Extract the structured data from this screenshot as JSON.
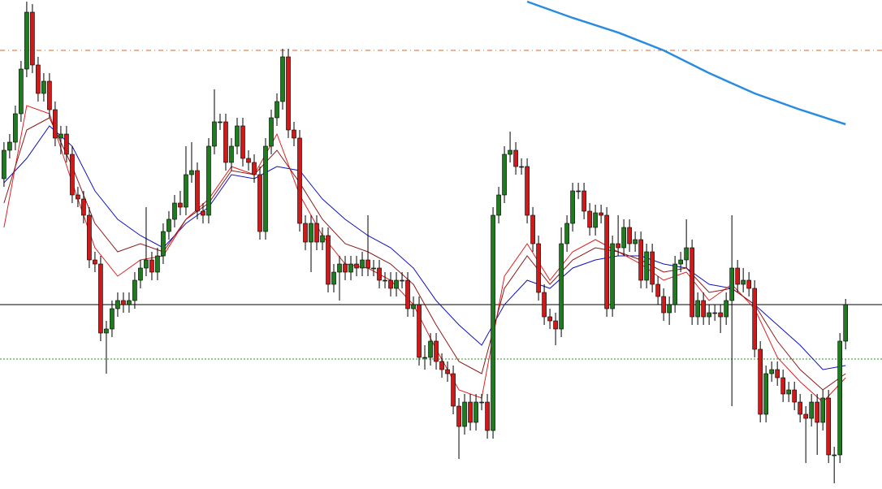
{
  "chart_data": {
    "type": "candlestick",
    "xlim": [
      -0.7,
      154.4
    ],
    "ylim": [
      0,
      600
    ],
    "up_color": "#1e7b1e",
    "down_color": "#d01a1a",
    "wick_color": "#000000",
    "open": [
      380,
      415,
      425,
      460,
      515,
      585,
      520,
      485,
      500,
      465,
      430,
      435,
      410,
      360,
      355,
      335,
      280,
      275,
      190,
      195,
      220,
      230,
      225,
      230,
      255,
      270,
      280,
      265,
      285,
      315,
      330,
      350,
      345,
      385,
      390,
      340,
      335,
      420,
      450,
      450,
      400,
      420,
      445,
      405,
      400,
      385,
      315,
      420,
      455,
      475,
      530,
      440,
      430,
      325,
      302,
      325,
      302,
      310,
      250,
      265,
      275,
      265,
      275,
      270,
      280,
      270,
      270,
      255,
      255,
      245,
      255,
      255,
      220,
      225,
      160,
      160,
      180,
      155,
      145,
      140,
      100,
      75,
      105,
      80,
      105,
      105,
      70,
      335,
      360,
      410,
      415,
      395,
      395,
      335,
      300,
      240,
      210,
      205,
      195,
      300,
      325,
      365,
      365,
      340,
      320,
      338,
      335,
      220,
      300,
      295,
      320,
      300,
      305,
      255,
      290,
      250,
      235,
      215,
      225,
      275,
      280,
      295,
      210,
      230,
      210,
      215,
      215,
      210,
      230,
      270,
      250,
      255,
      245,
      170,
      90,
      140,
      145,
      135,
      115,
      120,
      105,
      90,
      85,
      105,
      80,
      110,
      40,
      40,
      180
    ],
    "high": [
      425,
      435,
      470,
      525,
      598,
      595,
      530,
      510,
      510,
      475,
      445,
      445,
      420,
      370,
      365,
      345,
      290,
      285,
      205,
      230,
      240,
      240,
      240,
      265,
      280,
      345,
      290,
      295,
      325,
      340,
      360,
      365,
      420,
      425,
      400,
      350,
      430,
      490,
      460,
      460,
      430,
      455,
      455,
      415,
      410,
      395,
      430,
      465,
      485,
      540,
      540,
      450,
      440,
      335,
      335,
      335,
      320,
      320,
      275,
      285,
      285,
      285,
      285,
      290,
      335,
      280,
      280,
      265,
      265,
      265,
      265,
      265,
      235,
      235,
      175,
      190,
      190,
      165,
      155,
      150,
      110,
      115,
      115,
      115,
      115,
      115,
      345,
      370,
      420,
      438,
      425,
      405,
      405,
      345,
      310,
      250,
      220,
      215,
      320,
      335,
      375,
      375,
      375,
      350,
      348,
      348,
      345,
      310,
      335,
      330,
      330,
      315,
      315,
      300,
      300,
      260,
      245,
      235,
      285,
      290,
      330,
      305,
      240,
      240,
      225,
      225,
      225,
      240,
      335,
      280,
      270,
      265,
      255,
      180,
      150,
      155,
      155,
      145,
      130,
      130,
      115,
      100,
      115,
      115,
      120,
      120,
      50,
      190,
      232
    ],
    "low": [
      370,
      405,
      415,
      450,
      505,
      510,
      475,
      475,
      455,
      420,
      410,
      400,
      350,
      345,
      325,
      270,
      265,
      180,
      140,
      185,
      210,
      215,
      215,
      220,
      245,
      260,
      255,
      255,
      275,
      305,
      320,
      335,
      335,
      375,
      330,
      325,
      325,
      410,
      440,
      390,
      390,
      410,
      395,
      390,
      375,
      305,
      305,
      410,
      445,
      465,
      430,
      420,
      315,
      292,
      265,
      292,
      292,
      240,
      240,
      230,
      255,
      255,
      260,
      260,
      260,
      260,
      245,
      245,
      235,
      235,
      245,
      210,
      210,
      150,
      145,
      150,
      145,
      135,
      130,
      90,
      35,
      65,
      70,
      70,
      95,
      60,
      60,
      325,
      350,
      400,
      385,
      385,
      325,
      290,
      230,
      200,
      195,
      175,
      185,
      290,
      315,
      355,
      330,
      310,
      310,
      325,
      210,
      210,
      285,
      285,
      290,
      290,
      245,
      245,
      240,
      225,
      205,
      200,
      215,
      265,
      270,
      200,
      200,
      200,
      200,
      205,
      190,
      200,
      100,
      240,
      240,
      235,
      160,
      80,
      80,
      130,
      125,
      105,
      105,
      95,
      80,
      30,
      75,
      40,
      70,
      30,
      5,
      30,
      170
    ],
    "close": [
      415,
      425,
      460,
      515,
      585,
      520,
      485,
      500,
      465,
      430,
      435,
      410,
      360,
      355,
      335,
      280,
      275,
      190,
      195,
      220,
      230,
      225,
      230,
      255,
      270,
      280,
      265,
      285,
      315,
      330,
      350,
      345,
      385,
      390,
      340,
      335,
      420,
      450,
      450,
      400,
      420,
      445,
      405,
      400,
      385,
      315,
      420,
      455,
      475,
      530,
      440,
      430,
      325,
      302,
      325,
      302,
      310,
      250,
      265,
      275,
      265,
      275,
      270,
      280,
      270,
      270,
      255,
      255,
      245,
      255,
      255,
      220,
      225,
      160,
      160,
      180,
      155,
      145,
      140,
      100,
      75,
      105,
      80,
      105,
      105,
      70,
      335,
      360,
      410,
      415,
      395,
      395,
      335,
      300,
      240,
      210,
      205,
      195,
      300,
      325,
      365,
      365,
      340,
      320,
      338,
      335,
      220,
      300,
      295,
      320,
      300,
      305,
      255,
      290,
      250,
      235,
      215,
      225,
      275,
      280,
      295,
      210,
      230,
      210,
      215,
      215,
      210,
      230,
      270,
      250,
      255,
      245,
      170,
      90,
      140,
      145,
      135,
      115,
      120,
      105,
      90,
      85,
      105,
      80,
      110,
      40,
      40,
      180,
      225
    ],
    "lines": [
      {
        "color": "#1010c0",
        "width": 1,
        "x": [
          0,
          4,
          8,
          12,
          16,
          20,
          24,
          28,
          32,
          36,
          40,
          44,
          48,
          52,
          56,
          60,
          64,
          68,
          72,
          76,
          80,
          84,
          88,
          92,
          96,
          100,
          104,
          108,
          112,
          116,
          120,
          124,
          128,
          132,
          136,
          140,
          144,
          148
        ],
        "values": [
          375,
          405,
          445,
          420,
          365,
          330,
          310,
          295,
          325,
          345,
          385,
          380,
          395,
          390,
          355,
          330,
          310,
          295,
          270,
          230,
          200,
          175,
          225,
          255,
          245,
          270,
          280,
          285,
          285,
          275,
          270,
          250,
          245,
          225,
          200,
          175,
          145,
          150
        ]
      },
      {
        "color": "#e02020",
        "width": 1,
        "x": [
          0,
          4,
          8,
          12,
          16,
          20,
          24,
          28,
          32,
          36,
          40,
          44,
          48,
          52,
          56,
          60,
          64,
          68,
          72,
          76,
          80,
          84,
          88,
          92,
          96,
          100,
          104,
          108,
          112,
          116,
          120,
          124,
          128,
          132,
          136,
          140,
          144,
          148
        ],
        "values": [
          320,
          470,
          460,
          375,
          295,
          260,
          280,
          285,
          330,
          355,
          395,
          385,
          435,
          360,
          310,
          275,
          270,
          255,
          225,
          170,
          120,
          110,
          260,
          300,
          255,
          290,
          305,
          290,
          275,
          255,
          265,
          230,
          250,
          220,
          160,
          130,
          105,
          135
        ]
      },
      {
        "color": "#8b1a1a",
        "width": 1,
        "x": [
          0,
          4,
          8,
          12,
          16,
          20,
          24,
          28,
          32,
          36,
          40,
          44,
          48,
          52,
          56,
          60,
          64,
          68,
          72,
          76,
          80,
          84,
          88,
          92,
          96,
          100,
          104,
          108,
          112,
          116,
          120,
          124,
          128,
          132,
          136,
          140,
          144,
          148
        ],
        "values": [
          350,
          440,
          455,
          395,
          325,
          290,
          300,
          290,
          330,
          350,
          390,
          385,
          415,
          375,
          330,
          300,
          290,
          275,
          250,
          200,
          155,
          140,
          245,
          285,
          250,
          280,
          295,
          290,
          280,
          265,
          270,
          240,
          245,
          225,
          180,
          145,
          120,
          140
        ]
      },
      {
        "color": "#2a8ce0",
        "width": 2.5,
        "x": [
          92,
          100,
          108,
          116,
          124,
          132,
          140,
          148
        ],
        "values": [
          598,
          578,
          560,
          538,
          510,
          485,
          465,
          447
        ]
      }
    ],
    "levels": [
      {
        "value": 538,
        "color": "#e0622a",
        "dash": "dash-dot"
      },
      {
        "value": 225,
        "color": "#000000",
        "dash": "solid"
      },
      {
        "value": 158,
        "color": "#2a9a2a",
        "dash": "dotted"
      }
    ]
  }
}
